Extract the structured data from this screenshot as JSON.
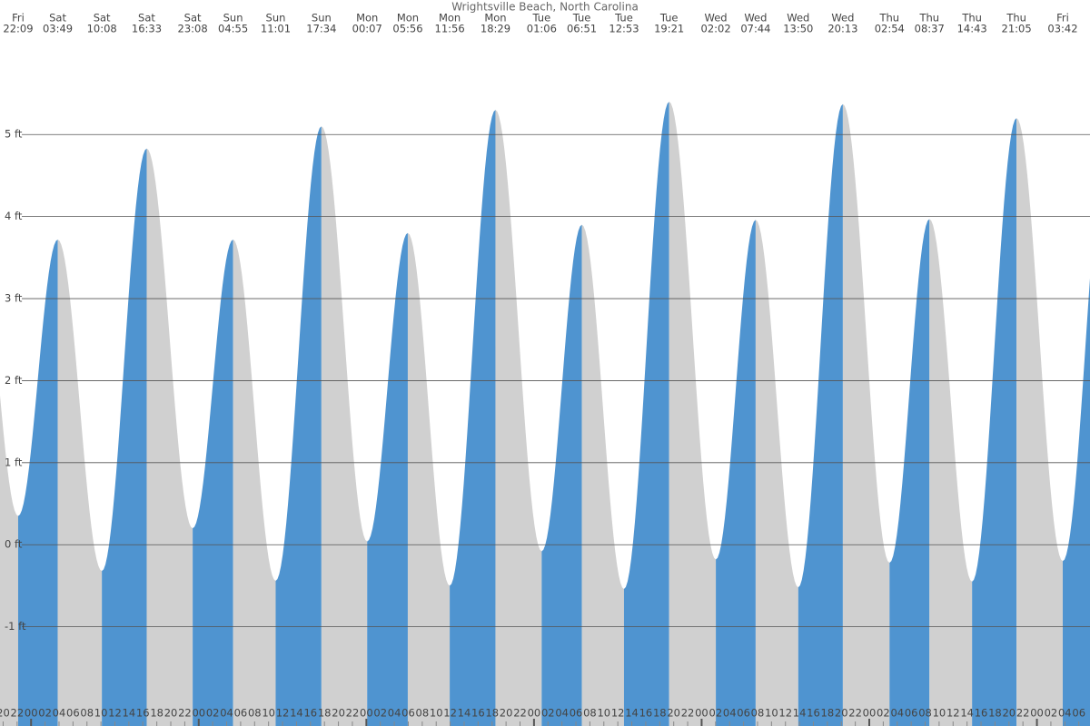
{
  "chart_data": {
    "type": "tide",
    "title": "Wrightsville Beach, North Carolina",
    "rising_color": "#4f94d0",
    "falling_color": "#d0d0d0",
    "grid": true,
    "days": [
      "Fri",
      "Sat",
      "Sat",
      "Sat",
      "Sat",
      "Sun",
      "Sun",
      "Sun",
      "Mon",
      "Mon",
      "Mon",
      "Mon",
      "Tue",
      "Tue",
      "Tue",
      "Tue",
      "Wed",
      "Wed",
      "Wed",
      "Wed",
      "Thu",
      "Thu",
      "Thu",
      "Thu",
      "Fri"
    ],
    "times": [
      "22:09",
      "03:49",
      "10:08",
      "16:33",
      "23:08",
      "04:55",
      "11:01",
      "17:34",
      "00:07",
      "05:56",
      "11:56",
      "18:29",
      "01:06",
      "06:51",
      "12:53",
      "19:21",
      "02:02",
      "07:44",
      "13:50",
      "20:13",
      "02:54",
      "08:37",
      "14:43",
      "21:05",
      "03:42"
    ],
    "values": [
      0.35,
      3.72,
      -0.32,
      4.83,
      0.2,
      3.72,
      -0.44,
      5.1,
      0.04,
      3.8,
      -0.5,
      5.3,
      -0.08,
      3.9,
      -0.54,
      5.4,
      -0.18,
      3.96,
      -0.52,
      5.37,
      -0.22,
      3.97,
      -0.45,
      5.2,
      -0.2
    ],
    "ylim": [
      -2.21,
      6.64
    ],
    "yticks": [
      {
        "value": -1,
        "label": "-1 ft"
      },
      {
        "value": 0,
        "label": "0 ft"
      },
      {
        "value": 1,
        "label": "1 ft"
      },
      {
        "value": 2,
        "label": "2 ft"
      },
      {
        "value": 3,
        "label": "3 ft"
      },
      {
        "value": 4,
        "label": "4 ft"
      },
      {
        "value": 5,
        "label": "5 ft"
      }
    ],
    "xlim": [
      19.55,
      175.6
    ],
    "xticks": [
      20,
      22,
      {
        "value": 24,
        "label": "00"
      },
      {
        "value": 26,
        "label": "02"
      },
      {
        "value": 28,
        "label": "04"
      },
      {
        "value": 30,
        "label": "06"
      },
      {
        "value": 32,
        "label": "08"
      },
      {
        "value": 34,
        "label": "10"
      },
      {
        "value": 36,
        "label": "12"
      },
      {
        "value": 38,
        "label": "14"
      },
      {
        "value": 40,
        "label": "16"
      },
      {
        "value": 42,
        "label": "18"
      },
      {
        "value": 44,
        "label": "20"
      },
      {
        "value": 46,
        "label": "22"
      },
      {
        "value": 48,
        "label": "00"
      },
      {
        "value": 50,
        "label": "02"
      },
      {
        "value": 52,
        "label": "04"
      },
      {
        "value": 54,
        "label": "06"
      },
      {
        "value": 56,
        "label": "08"
      },
      {
        "value": 58,
        "label": "10"
      },
      {
        "value": 60,
        "label": "12"
      },
      {
        "value": 62,
        "label": "14"
      },
      {
        "value": 64,
        "label": "16"
      },
      {
        "value": 66,
        "label": "18"
      },
      {
        "value": 68,
        "label": "20"
      },
      {
        "value": 70,
        "label": "22"
      },
      {
        "value": 72,
        "label": "00"
      },
      {
        "value": 74,
        "label": "02"
      },
      {
        "value": 76,
        "label": "04"
      },
      {
        "value": 78,
        "label": "06"
      },
      {
        "value": 80,
        "label": "08"
      },
      {
        "value": 82,
        "label": "10"
      },
      {
        "value": 84,
        "label": "12"
      },
      {
        "value": 86,
        "label": "14"
      },
      {
        "value": 88,
        "label": "16"
      },
      {
        "value": 90,
        "label": "18"
      },
      {
        "value": 92,
        "label": "20"
      },
      {
        "value": 94,
        "label": "22"
      },
      {
        "value": 96,
        "label": "00"
      },
      {
        "value": 98,
        "label": "02"
      },
      {
        "value": 100,
        "label": "04"
      },
      {
        "value": 102,
        "label": "06"
      },
      {
        "value": 104,
        "label": "08"
      },
      {
        "value": 106,
        "label": "10"
      },
      {
        "value": 108,
        "label": "12"
      },
      {
        "value": 110,
        "label": "14"
      },
      {
        "value": 112,
        "label": "16"
      },
      {
        "value": 114,
        "label": "18"
      },
      {
        "value": 116,
        "label": "20"
      },
      {
        "value": 118,
        "label": "22"
      },
      {
        "value": 120,
        "label": "00"
      },
      {
        "value": 122,
        "label": "02"
      },
      {
        "value": 124,
        "label": "04"
      },
      {
        "value": 126,
        "label": "06"
      },
      {
        "value": 128,
        "label": "08"
      },
      {
        "value": 130,
        "label": "10"
      },
      {
        "value": 132,
        "label": "12"
      },
      {
        "value": 134,
        "label": "14"
      },
      {
        "value": 136,
        "label": "16"
      },
      {
        "value": 138,
        "label": "18"
      },
      {
        "value": 140,
        "label": "20"
      },
      {
        "value": 142,
        "label": "22"
      },
      {
        "value": 144,
        "label": "00"
      },
      {
        "value": 146,
        "label": "02"
      },
      {
        "value": 148,
        "label": "04"
      },
      {
        "value": 150,
        "label": "06"
      },
      {
        "value": 152,
        "label": "08"
      },
      {
        "value": 154,
        "label": "10"
      },
      {
        "value": 156,
        "label": "12"
      },
      {
        "value": 158,
        "label": "14"
      },
      {
        "value": 160,
        "label": "16"
      },
      {
        "value": 162,
        "label": "18"
      },
      {
        "value": 164,
        "label": "20"
      },
      {
        "value": 166,
        "label": "22"
      },
      {
        "value": 168,
        "label": "00"
      },
      {
        "value": 170,
        "label": "02"
      },
      {
        "value": 172,
        "label": "04"
      },
      {
        "value": 174,
        "label": "06"
      }
    ]
  }
}
